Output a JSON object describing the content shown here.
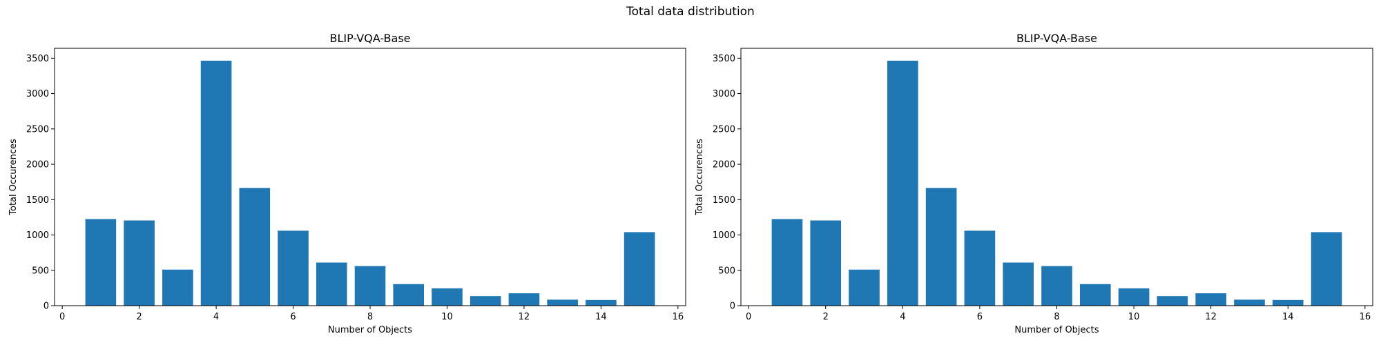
{
  "suptitle": "Total data distribution",
  "colors": {
    "bar": "#1f77b4",
    "axis": "#000000"
  },
  "chart_data": [
    {
      "type": "bar",
      "title": "BLIP-VQA-Base",
      "xlabel": "Number of Objects",
      "ylabel": "Total Occurences",
      "categories": [
        1,
        2,
        3,
        4,
        5,
        6,
        7,
        8,
        9,
        10,
        11,
        12,
        13,
        14,
        15
      ],
      "values": [
        1225,
        1205,
        510,
        3465,
        1665,
        1060,
        610,
        560,
        305,
        245,
        135,
        175,
        85,
        80,
        1040
      ],
      "xlim": [
        -0.2,
        16.2
      ],
      "ylim": [
        0,
        3640
      ],
      "xticks": [
        0,
        2,
        4,
        6,
        8,
        10,
        12,
        14,
        16
      ],
      "yticks": [
        0,
        500,
        1000,
        1500,
        2000,
        2500,
        3000,
        3500
      ],
      "grid": false
    },
    {
      "type": "bar",
      "title": "BLIP-VQA-Base",
      "xlabel": "Number of Objects",
      "ylabel": "Total Occurences",
      "categories": [
        1,
        2,
        3,
        4,
        5,
        6,
        7,
        8,
        9,
        10,
        11,
        12,
        13,
        14,
        15
      ],
      "values": [
        1225,
        1205,
        510,
        3465,
        1665,
        1060,
        610,
        560,
        305,
        245,
        135,
        175,
        85,
        80,
        1040
      ],
      "xlim": [
        -0.2,
        16.2
      ],
      "ylim": [
        0,
        3640
      ],
      "xticks": [
        0,
        2,
        4,
        6,
        8,
        10,
        12,
        14,
        16
      ],
      "yticks": [
        0,
        500,
        1000,
        1500,
        2000,
        2500,
        3000,
        3500
      ],
      "grid": false
    }
  ]
}
